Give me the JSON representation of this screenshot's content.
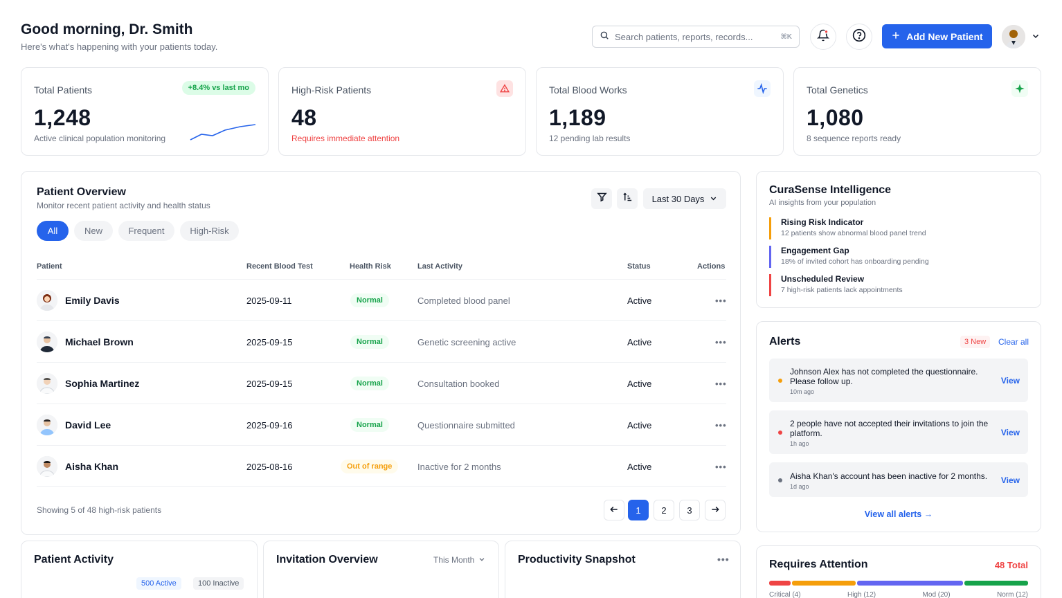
{
  "header": {
    "greeting": "Good morning, Dr. Smith",
    "subtitle": "Here's what's happening with your patients today.",
    "search_placeholder": "Search patients, reports, records...",
    "search_shortcut": "⌘K",
    "add_button_label": "Add New Patient"
  },
  "stats": [
    {
      "label": "Total Patients",
      "value": "1,248",
      "foot": "Active clinical population monitoring",
      "badge": "+8.4% vs last mo",
      "icon": "trend-sparkline",
      "accent": "#2563eb"
    },
    {
      "label": "High-Risk Patients",
      "value": "48",
      "foot": "Requires immediate attention",
      "icon": "warning-icon",
      "accent": "#ef4444"
    },
    {
      "label": "Total Blood Works",
      "value": "1,189",
      "foot": "12 pending lab results",
      "icon": "pulse-icon",
      "accent": "#2563eb"
    },
    {
      "label": "Total Genetics",
      "value": "1,080",
      "foot": "8 sequence reports ready",
      "icon": "sparkle-icon",
      "accent": "#16a34a"
    }
  ],
  "overview": {
    "title": "Patient Overview",
    "subtitle": "Monitor recent patient activity and health status",
    "range_label": "Last 30 Days",
    "chips": [
      "All",
      "New",
      "Frequent",
      "High-Risk"
    ],
    "active_chip": "All",
    "columns": {
      "patient": "Patient",
      "blood": "Recent Blood Test",
      "risk": "Health Risk",
      "activity": "Last Activity",
      "status": "Status",
      "actions": "Actions"
    },
    "rows": [
      {
        "name": "Emily Davis",
        "blood": "2025-09-11",
        "risk": "Normal",
        "activity": "Completed blood panel",
        "status": "Active"
      },
      {
        "name": "Michael Brown",
        "blood": "2025-09-15",
        "risk": "Normal",
        "activity": "Genetic screening active",
        "status": "Active"
      },
      {
        "name": "Sophia Martinez",
        "blood": "2025-09-15",
        "risk": "Normal",
        "activity": "Consultation booked",
        "status": "Active"
      },
      {
        "name": "David Lee",
        "blood": "2025-09-16",
        "risk": "Normal",
        "activity": "Questionnaire submitted",
        "status": "Active"
      },
      {
        "name": "Aisha Khan",
        "blood": "2025-08-16",
        "risk": "Out of range",
        "activity": "Inactive for 2 months",
        "status": "Active"
      }
    ],
    "footer": "Showing 5 of 48 high-risk patients",
    "pages": [
      "1",
      "2",
      "3"
    ],
    "current_page": "1"
  },
  "intelligence": {
    "title": "CuraSense Intelligence",
    "subtitle": "AI insights from your population",
    "items": [
      {
        "title": "Rising Risk Indicator",
        "desc": "12 patients show abnormal blood panel trend",
        "color": "#f59e0b"
      },
      {
        "title": "Engagement Gap",
        "desc": "18% of invited cohort has onboarding pending",
        "color": "#6366f1"
      },
      {
        "title": "Unscheduled Review",
        "desc": "7 high-risk patients lack appointments",
        "color": "#ef4444"
      }
    ]
  },
  "alerts": {
    "title": "Alerts",
    "new_badge": "3 New",
    "clear_label": "Clear all",
    "items": [
      {
        "message": "Johnson Alex has not completed the questionnaire. Please follow up.",
        "time": "10m ago",
        "action": "View",
        "color": "#f59e0b"
      },
      {
        "message": "2 people have not accepted their invitations to join the platform.",
        "time": "1h ago",
        "action": "View",
        "color": "#ef4444"
      },
      {
        "message": "Aisha Khan's account has been inactive for 2 months.",
        "time": "1d ago",
        "action": "View",
        "color": "#6b7280"
      }
    ],
    "view_all": "View all alerts →"
  },
  "bottom": {
    "activity": {
      "title": "Patient Activity",
      "active_badge": "500 Active",
      "inactive_badge": "100 Inactive"
    },
    "invitation": {
      "title": "Invitation Overview",
      "period": "This Month"
    },
    "productivity": {
      "title": "Productivity Snapshot"
    },
    "attention": {
      "title": "Requires Attention",
      "total": "48 Total",
      "segments": [
        {
          "label": "Critical (4)",
          "value": 4,
          "color": "#ef4444"
        },
        {
          "label": "High (12)",
          "value": 12,
          "color": "#f59e0b"
        },
        {
          "label": "Mod (20)",
          "value": 20,
          "color": "#6366f1"
        },
        {
          "label": "Norm (12)",
          "value": 12,
          "color": "#16a34a"
        }
      ]
    }
  }
}
